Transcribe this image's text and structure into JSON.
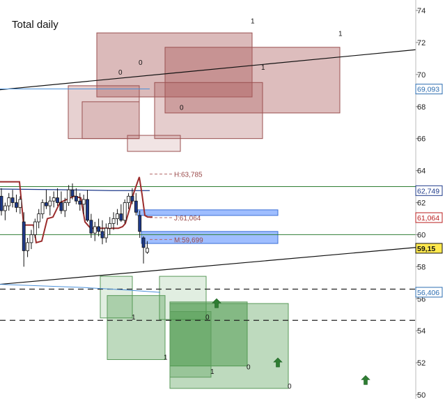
{
  "chart_data": {
    "type": "candlestick",
    "title": "Total daily",
    "y_ticks": [
      50,
      52,
      54,
      56,
      58,
      60,
      62,
      64,
      66,
      68,
      70,
      72,
      74
    ],
    "ylim": [
      49.9,
      74.6
    ],
    "price_badges": [
      {
        "value": 69.093,
        "label": "69,093",
        "color": "#2b6cb0",
        "fill": "#ffffff"
      },
      {
        "value": 62.749,
        "label": "62,749",
        "color": "#1e3a8a",
        "fill": "#ffffff"
      },
      {
        "value": 61.064,
        "label": "61,064",
        "color": "#b91c1c",
        "fill": "#ffffff"
      },
      {
        "value": 59.15,
        "label": "59,15",
        "color": "#111111",
        "fill": "#ffe94d"
      },
      {
        "value": 56.406,
        "label": "56,406",
        "color": "#2b6cb0",
        "fill": "#ffffff"
      }
    ],
    "level_labels": [
      {
        "label": "H:63,785",
        "value": 63.785
      },
      {
        "label": "J:61,064",
        "value": 61.064
      },
      {
        "label": "M:59,699",
        "value": 59.699
      }
    ],
    "horizontal_lines": [
      63.0,
      60.0
    ],
    "dashed_lines": [
      56.6,
      54.65
    ],
    "blue_zones": [
      {
        "from_idx": 37,
        "to_price_x": 399,
        "low": 61.2,
        "high": 61.55
      },
      {
        "from_idx": 38,
        "to_price_x": 399,
        "low": 59.45,
        "high": 60.2
      }
    ],
    "box_markers": [
      "1",
      "1",
      "0",
      "0",
      "1",
      "0",
      "1",
      "0",
      "1",
      "0",
      "1",
      "0"
    ],
    "candles": [
      [
        62.4,
        62.9,
        61.2,
        61.5
      ],
      [
        61.5,
        62.0,
        60.9,
        61.8
      ],
      [
        61.8,
        62.6,
        61.5,
        62.3
      ],
      [
        62.3,
        62.8,
        61.7,
        62.0
      ],
      [
        62.0,
        62.5,
        61.4,
        61.7
      ],
      [
        61.7,
        62.4,
        61.3,
        62.2
      ],
      [
        60.8,
        61.4,
        58.0,
        59.0
      ],
      [
        59.0,
        59.8,
        58.6,
        59.5
      ],
      [
        59.5,
        60.3,
        59.1,
        60.0
      ],
      [
        60.0,
        61.0,
        59.8,
        60.8
      ],
      [
        60.8,
        61.6,
        60.4,
        61.3
      ],
      [
        61.3,
        62.2,
        61.0,
        62.0
      ],
      [
        62.0,
        62.8,
        61.6,
        61.8
      ],
      [
        61.8,
        62.4,
        61.2,
        62.1
      ],
      [
        62.1,
        62.7,
        61.7,
        62.3
      ],
      [
        62.3,
        62.9,
        61.8,
        62.0
      ],
      [
        62.0,
        62.7,
        61.3,
        61.5
      ],
      [
        61.5,
        62.3,
        61.1,
        62.0
      ],
      [
        62.0,
        63.1,
        61.8,
        62.8
      ],
      [
        62.8,
        63.2,
        62.2,
        62.4
      ],
      [
        62.4,
        62.9,
        61.9,
        62.1
      ],
      [
        62.1,
        62.6,
        61.5,
        61.9
      ],
      [
        61.9,
        62.5,
        61.3,
        62.2
      ],
      [
        62.2,
        62.8,
        60.8,
        60.9
      ],
      [
        60.9,
        61.3,
        59.8,
        60.1
      ],
      [
        60.1,
        60.8,
        59.6,
        60.5
      ],
      [
        60.5,
        61.0,
        59.9,
        60.2
      ],
      [
        60.2,
        60.9,
        59.4,
        59.8
      ],
      [
        59.8,
        60.7,
        59.5,
        60.4
      ],
      [
        60.4,
        61.1,
        60.0,
        60.7
      ],
      [
        60.7,
        61.4,
        60.3,
        61.0
      ],
      [
        61.0,
        61.6,
        60.6,
        61.3
      ],
      [
        61.3,
        61.9,
        60.8,
        60.9
      ],
      [
        60.9,
        62.2,
        60.7,
        62.0
      ],
      [
        62.0,
        62.6,
        61.6,
        62.4
      ],
      [
        62.4,
        62.9,
        61.9,
        62.1
      ],
      [
        62.1,
        62.6,
        61.2,
        61.4
      ],
      [
        61.2,
        61.5,
        59.8,
        60.2
      ],
      [
        59.8,
        59.9,
        58.2,
        59.2
      ],
      [
        58.9,
        59.6,
        58.8,
        59.15
      ]
    ]
  }
}
